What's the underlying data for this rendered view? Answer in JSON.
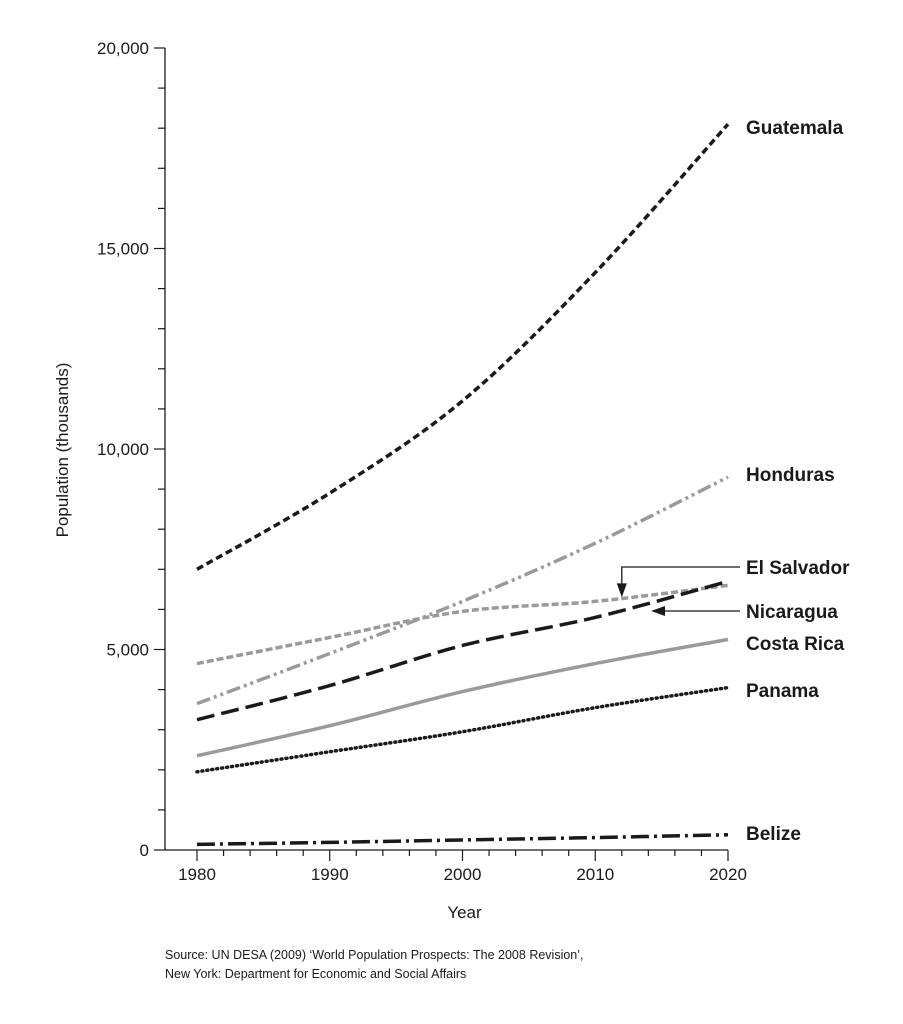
{
  "chart_data": {
    "type": "line",
    "xlabel": "Year",
    "ylabel": "Population (thousands)",
    "xlim": [
      1980,
      2020
    ],
    "ylim": [
      0,
      20000
    ],
    "x_ticks": [
      "1980",
      "1990",
      "2000",
      "2010",
      "2020"
    ],
    "y_ticks": [
      "0",
      "5,000",
      "10,000",
      "15,000",
      "20,000"
    ],
    "grid": false,
    "x": [
      1980,
      1990,
      2000,
      2010,
      2020
    ],
    "series": [
      {
        "name": "Guatemala",
        "values": [
          7000,
          8900,
          11200,
          14400,
          18100
        ],
        "color": "#1a1a1a",
        "dash": "7,4",
        "width": 3.5
      },
      {
        "name": "Honduras",
        "values": [
          3650,
          4900,
          6200,
          7650,
          9300
        ],
        "color": "#9a9a9a",
        "dash": "14,4,3,4,3,4",
        "width": 3.5
      },
      {
        "name": "El Salvador",
        "values": [
          4650,
          5300,
          5950,
          6200,
          6600
        ],
        "color": "#9a9a9a",
        "dash": "7,3",
        "width": 3.5
      },
      {
        "name": "Nicaragua",
        "values": [
          3250,
          4100,
          5100,
          5800,
          6700
        ],
        "color": "#1a1a1a",
        "dash": "18,7",
        "width": 3.5
      },
      {
        "name": "Costa Rica",
        "values": [
          2350,
          3100,
          3950,
          4650,
          5250
        ],
        "color": "#9a9a9a",
        "dash": "",
        "width": 3.5
      },
      {
        "name": "Panama",
        "values": [
          1950,
          2450,
          2950,
          3550,
          4050
        ],
        "color": "#1a1a1a",
        "dash": "1,4",
        "width": 3.5
      },
      {
        "name": "Belize",
        "values": [
          140,
          190,
          250,
          310,
          380
        ],
        "color": "#1a1a1a",
        "dash": "18,5,3,5",
        "width": 3.5
      }
    ],
    "annotations": [
      {
        "series": "El Salvador",
        "type": "arrow"
      },
      {
        "series": "Nicaragua",
        "type": "arrow"
      }
    ]
  },
  "source": {
    "line1": "Source: UN DESA (2009) ‘World Population Prospects: The 2008 Revision’,",
    "line2": "New York: Department for Economic and Social Affairs"
  }
}
